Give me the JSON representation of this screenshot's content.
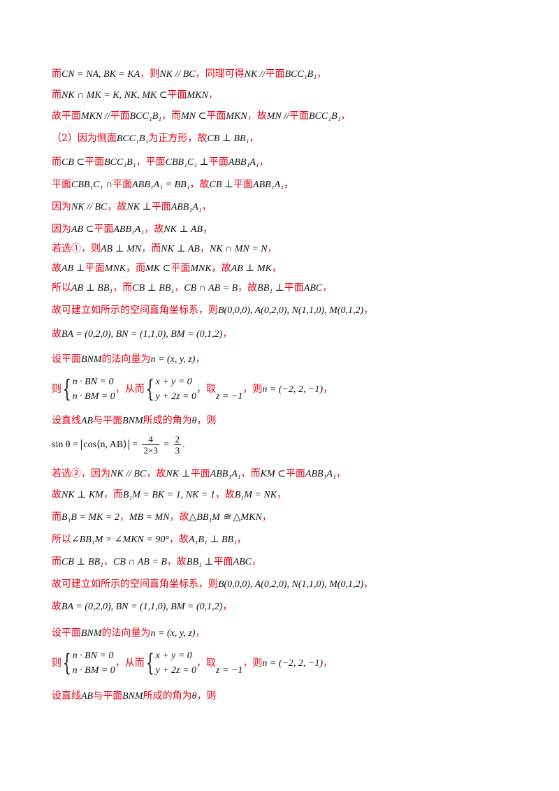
{
  "lines": [
    {
      "id": "l1",
      "parts": [
        "而",
        "CN = NA, BK = KA",
        "，则",
        "NK // BC",
        "，同理可得",
        "NK //",
        "平面",
        "BCC₁B₁",
        "，"
      ]
    },
    {
      "id": "l2",
      "parts": [
        "而",
        "NK ∩ MK = K, NK, MK ⊂",
        "平面",
        "MKN",
        "，"
      ]
    },
    {
      "id": "l3",
      "parts": [
        "故平面",
        "MKN //",
        "平面",
        "BCC₁B₁",
        "，而",
        "MN ⊂",
        "平面",
        "MKN",
        "，故",
        "MN //",
        "平面",
        "BCC₁B₁",
        "，"
      ]
    },
    {
      "id": "l4",
      "parts": [
        "（2）因为侧面",
        "BCC₁B₁",
        "为正方形，故",
        "CB ⊥ BB₁",
        "，"
      ]
    },
    {
      "id": "l5",
      "parts": [
        "而",
        "CB ⊂",
        "平面",
        "BCC₁B₁",
        "，平面",
        "CBB₁C₁ ⊥",
        "平面",
        "ABB₁A₁",
        "，"
      ]
    },
    {
      "id": "l6",
      "parts": [
        "平面",
        "CBB₁C₁ ∩",
        "平面",
        "ABB₁A₁ = BB₁",
        "，故",
        "CB ⊥",
        "平面",
        "ABB₁A₁",
        "，"
      ]
    },
    {
      "id": "l7",
      "parts": [
        "因为",
        "NK // BC",
        "，故",
        "NK ⊥",
        "平面",
        "ABB₁A₁",
        "，"
      ]
    },
    {
      "id": "l8",
      "parts": [
        "因为",
        "AB ⊂",
        "平面",
        "ABB₁A₁",
        "，故",
        "NK ⊥ AB",
        "，"
      ]
    },
    {
      "id": "l9",
      "parts": [
        "若选①，则",
        "AB ⊥ MN",
        "，而",
        "NK ⊥ AB",
        "，",
        "NK ∩ MN = N",
        "，"
      ]
    },
    {
      "id": "l10",
      "parts": [
        "故",
        "AB ⊥",
        "平面",
        "MNK",
        "，而",
        "MK ⊂",
        "平面",
        "MNK",
        "，故",
        "AB ⊥ MK",
        "，"
      ]
    },
    {
      "id": "l11",
      "parts": [
        "所以",
        "AB ⊥ BB₁",
        "，而",
        "CB ⊥ BB₁",
        "，",
        "CB ∩ AB = B",
        "，故",
        "BB₁ ⊥",
        "平面",
        "ABC",
        "，"
      ]
    },
    {
      "id": "l12",
      "parts": [
        "故可建立如所示的空间直角坐标系，则",
        "B(0,0,0), A(0,2,0), N(1,1,0), M(0,1,2)",
        "，"
      ]
    },
    {
      "id": "l13",
      "parts": [
        "故",
        "BA = (0,2,0), BN = (1,1,0), BM = (0,1,2)",
        "，"
      ]
    },
    {
      "id": "l14",
      "parts": [
        "设平面",
        "BNM",
        "的法向量为",
        "n = (x, y, z)",
        "，"
      ]
    },
    {
      "id": "l15",
      "parts": [
        "则",
        "n · BN = 0",
        "n · BM = 0",
        "，从而",
        "x + y = 0",
        "y + 2z = 0",
        "，取",
        "z = −1",
        "，则",
        "n = (−2, 2, −1)",
        "，"
      ]
    },
    {
      "id": "l16",
      "parts": [
        "设直线",
        "AB",
        "与平面",
        "BNM",
        "所成的角为",
        "θ",
        "，则"
      ]
    },
    {
      "id": "l17",
      "parts": [
        "sin θ =",
        "cos⟨n, AB⟩",
        "=",
        "4",
        "2×3",
        "=",
        "2",
        "3",
        "."
      ]
    },
    {
      "id": "l18",
      "parts": [
        "若选②，因为",
        "NK // BC",
        "，故",
        "NK ⊥",
        "平面",
        "ABB₁A₁",
        "，而",
        "KM ⊂",
        "平面",
        "ABB₁A₁",
        "，"
      ]
    },
    {
      "id": "l19",
      "parts": [
        "故",
        "NK ⊥ KM",
        "，而",
        "B₁M = BK = 1, NK = 1",
        "，故",
        "B₁M = NK",
        "，"
      ]
    },
    {
      "id": "l20",
      "parts": [
        "而",
        "B₁B = MK = 2",
        "，",
        "MB = MN",
        "，故",
        "△BB₁M ≅ △MKN",
        "，"
      ]
    },
    {
      "id": "l21",
      "parts": [
        "所以",
        "∠BB₁M = ∠MKN = 90°",
        "，故",
        "A₁B₁ ⊥ BB₁",
        "，"
      ]
    },
    {
      "id": "l22",
      "parts": [
        "而",
        "CB ⊥ BB₁",
        "，",
        "CB ∩ AB = B",
        "，故",
        "BB₁ ⊥",
        "平面",
        "ABC",
        "，"
      ]
    },
    {
      "id": "l23",
      "parts": [
        "故可建立如所示的空间直角坐标系，则",
        "B(0,0,0), A(0,2,0), N(1,1,0), M(0,1,2)",
        "，"
      ]
    },
    {
      "id": "l24",
      "parts": [
        "故",
        "BA = (0,2,0), BN = (1,1,0), BM = (0,1,2)",
        "，"
      ]
    },
    {
      "id": "l25",
      "parts": [
        "设平面",
        "BNM",
        "的法向量为",
        "n = (x, y, z)",
        "，"
      ]
    },
    {
      "id": "l26",
      "parts": [
        "则",
        "n · BN = 0",
        "n · BM = 0",
        "，从而",
        "x + y = 0",
        "y + 2z = 0",
        "，取",
        "z = −1",
        "，则",
        "n = (−2, 2, −1)",
        "，"
      ]
    },
    {
      "id": "l27",
      "parts": [
        "设直线",
        "AB",
        "与平面",
        "BNM",
        "所成的角为",
        "θ",
        "，则"
      ]
    }
  ]
}
